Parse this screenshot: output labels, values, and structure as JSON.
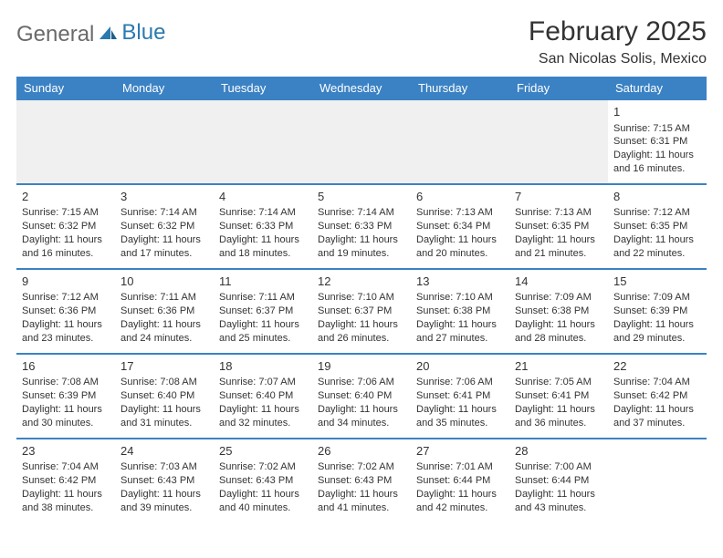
{
  "brand": {
    "word1": "General",
    "word2": "Blue"
  },
  "title": "February 2025",
  "location": "San Nicolas Solis, Mexico",
  "colors": {
    "header_bg": "#3b82c4",
    "header_text": "#ffffff",
    "text": "#333333",
    "grid_line": "#3b82c4",
    "empty_bg": "#f0f0f0",
    "page_bg": "#ffffff",
    "brand_grey": "#6a6a6a",
    "brand_blue": "#2a7ab0"
  },
  "typography": {
    "title_fontsize": 30,
    "location_fontsize": 16,
    "header_fontsize": 13,
    "daynum_fontsize": 13,
    "cell_fontsize": 11
  },
  "day_headers": [
    "Sunday",
    "Monday",
    "Tuesday",
    "Wednesday",
    "Thursday",
    "Friday",
    "Saturday"
  ],
  "weeks": [
    [
      null,
      null,
      null,
      null,
      null,
      null,
      {
        "n": "1",
        "sr": "7:15 AM",
        "ss": "6:31 PM",
        "dl": "11 hours and 16 minutes."
      }
    ],
    [
      {
        "n": "2",
        "sr": "7:15 AM",
        "ss": "6:32 PM",
        "dl": "11 hours and 16 minutes."
      },
      {
        "n": "3",
        "sr": "7:14 AM",
        "ss": "6:32 PM",
        "dl": "11 hours and 17 minutes."
      },
      {
        "n": "4",
        "sr": "7:14 AM",
        "ss": "6:33 PM",
        "dl": "11 hours and 18 minutes."
      },
      {
        "n": "5",
        "sr": "7:14 AM",
        "ss": "6:33 PM",
        "dl": "11 hours and 19 minutes."
      },
      {
        "n": "6",
        "sr": "7:13 AM",
        "ss": "6:34 PM",
        "dl": "11 hours and 20 minutes."
      },
      {
        "n": "7",
        "sr": "7:13 AM",
        "ss": "6:35 PM",
        "dl": "11 hours and 21 minutes."
      },
      {
        "n": "8",
        "sr": "7:12 AM",
        "ss": "6:35 PM",
        "dl": "11 hours and 22 minutes."
      }
    ],
    [
      {
        "n": "9",
        "sr": "7:12 AM",
        "ss": "6:36 PM",
        "dl": "11 hours and 23 minutes."
      },
      {
        "n": "10",
        "sr": "7:11 AM",
        "ss": "6:36 PM",
        "dl": "11 hours and 24 minutes."
      },
      {
        "n": "11",
        "sr": "7:11 AM",
        "ss": "6:37 PM",
        "dl": "11 hours and 25 minutes."
      },
      {
        "n": "12",
        "sr": "7:10 AM",
        "ss": "6:37 PM",
        "dl": "11 hours and 26 minutes."
      },
      {
        "n": "13",
        "sr": "7:10 AM",
        "ss": "6:38 PM",
        "dl": "11 hours and 27 minutes."
      },
      {
        "n": "14",
        "sr": "7:09 AM",
        "ss": "6:38 PM",
        "dl": "11 hours and 28 minutes."
      },
      {
        "n": "15",
        "sr": "7:09 AM",
        "ss": "6:39 PM",
        "dl": "11 hours and 29 minutes."
      }
    ],
    [
      {
        "n": "16",
        "sr": "7:08 AM",
        "ss": "6:39 PM",
        "dl": "11 hours and 30 minutes."
      },
      {
        "n": "17",
        "sr": "7:08 AM",
        "ss": "6:40 PM",
        "dl": "11 hours and 31 minutes."
      },
      {
        "n": "18",
        "sr": "7:07 AM",
        "ss": "6:40 PM",
        "dl": "11 hours and 32 minutes."
      },
      {
        "n": "19",
        "sr": "7:06 AM",
        "ss": "6:40 PM",
        "dl": "11 hours and 34 minutes."
      },
      {
        "n": "20",
        "sr": "7:06 AM",
        "ss": "6:41 PM",
        "dl": "11 hours and 35 minutes."
      },
      {
        "n": "21",
        "sr": "7:05 AM",
        "ss": "6:41 PM",
        "dl": "11 hours and 36 minutes."
      },
      {
        "n": "22",
        "sr": "7:04 AM",
        "ss": "6:42 PM",
        "dl": "11 hours and 37 minutes."
      }
    ],
    [
      {
        "n": "23",
        "sr": "7:04 AM",
        "ss": "6:42 PM",
        "dl": "11 hours and 38 minutes."
      },
      {
        "n": "24",
        "sr": "7:03 AM",
        "ss": "6:43 PM",
        "dl": "11 hours and 39 minutes."
      },
      {
        "n": "25",
        "sr": "7:02 AM",
        "ss": "6:43 PM",
        "dl": "11 hours and 40 minutes."
      },
      {
        "n": "26",
        "sr": "7:02 AM",
        "ss": "6:43 PM",
        "dl": "11 hours and 41 minutes."
      },
      {
        "n": "27",
        "sr": "7:01 AM",
        "ss": "6:44 PM",
        "dl": "11 hours and 42 minutes."
      },
      {
        "n": "28",
        "sr": "7:00 AM",
        "ss": "6:44 PM",
        "dl": "11 hours and 43 minutes."
      },
      null
    ]
  ],
  "labels": {
    "sunrise": "Sunrise:",
    "sunset": "Sunset:",
    "daylight": "Daylight:"
  }
}
